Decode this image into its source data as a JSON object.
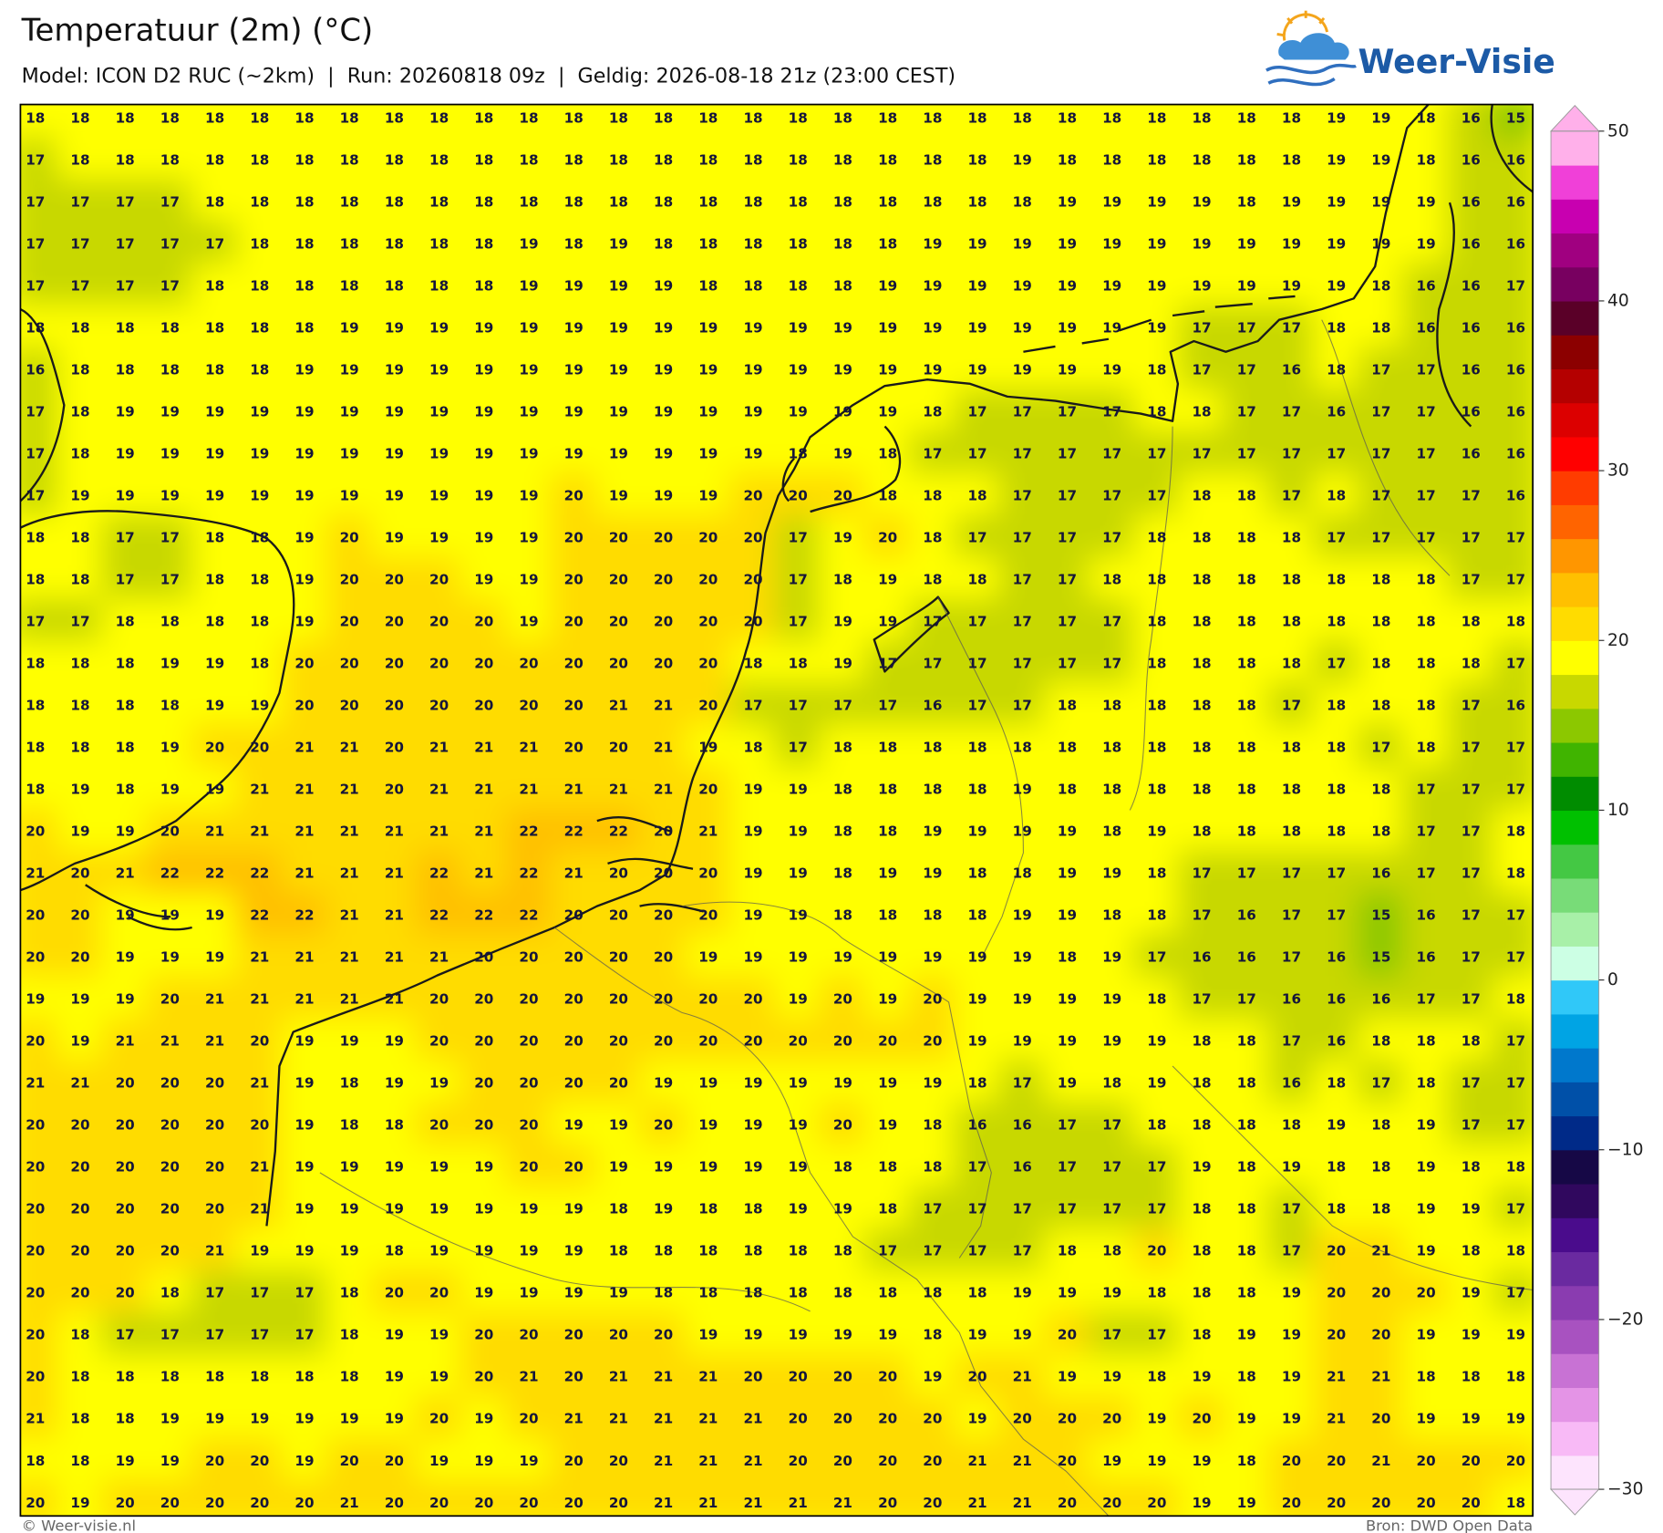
{
  "header": {
    "title": "Temperatuur (2m) (°C)",
    "subtitle": "Model: ICON D2 RUC (~2km)  |  Run: 20260818 09z  |  Geldig: 2026-08-18 21z (23:00 CEST)"
  },
  "logo": {
    "text": "Weer-Visie"
  },
  "map": {
    "values": [
      [
        18,
        18,
        18,
        18,
        18,
        18,
        18,
        18,
        18,
        18,
        18,
        18,
        18,
        18,
        18,
        18,
        18,
        18,
        18,
        18,
        18,
        18,
        18,
        18,
        18,
        18,
        18,
        18,
        18,
        19,
        19,
        18,
        16,
        15
      ],
      [
        17,
        18,
        18,
        18,
        18,
        18,
        18,
        18,
        18,
        18,
        18,
        18,
        18,
        18,
        18,
        18,
        18,
        18,
        18,
        18,
        18,
        18,
        19,
        18,
        18,
        18,
        18,
        18,
        18,
        19,
        19,
        18,
        16,
        16
      ],
      [
        17,
        17,
        17,
        17,
        18,
        18,
        18,
        18,
        18,
        18,
        18,
        18,
        18,
        18,
        18,
        18,
        18,
        18,
        18,
        18,
        18,
        18,
        18,
        19,
        19,
        19,
        19,
        18,
        19,
        19,
        19,
        19,
        16,
        16
      ],
      [
        17,
        17,
        17,
        17,
        17,
        18,
        18,
        18,
        18,
        18,
        18,
        19,
        18,
        19,
        18,
        18,
        18,
        18,
        18,
        18,
        19,
        19,
        19,
        19,
        19,
        19,
        19,
        19,
        19,
        19,
        19,
        19,
        16,
        16
      ],
      [
        17,
        17,
        17,
        17,
        18,
        18,
        18,
        18,
        18,
        18,
        18,
        19,
        19,
        19,
        19,
        18,
        18,
        18,
        18,
        19,
        19,
        19,
        19,
        19,
        19,
        19,
        19,
        19,
        19,
        19,
        18,
        16,
        16,
        17
      ],
      [
        18,
        18,
        18,
        18,
        18,
        18,
        18,
        19,
        19,
        19,
        19,
        19,
        19,
        19,
        19,
        19,
        19,
        19,
        19,
        19,
        19,
        19,
        19,
        19,
        19,
        19,
        17,
        17,
        17,
        18,
        18,
        16,
        16,
        16
      ],
      [
        16,
        18,
        18,
        18,
        18,
        18,
        19,
        19,
        19,
        19,
        19,
        19,
        19,
        19,
        19,
        19,
        19,
        19,
        19,
        19,
        19,
        19,
        19,
        19,
        19,
        18,
        17,
        17,
        16,
        18,
        17,
        17,
        16,
        16
      ],
      [
        17,
        18,
        19,
        19,
        19,
        19,
        19,
        19,
        19,
        19,
        19,
        19,
        19,
        19,
        19,
        19,
        19,
        19,
        19,
        19,
        18,
        17,
        17,
        17,
        17,
        18,
        18,
        17,
        17,
        16,
        17,
        17,
        16,
        16
      ],
      [
        17,
        18,
        19,
        19,
        19,
        19,
        19,
        19,
        19,
        19,
        19,
        19,
        19,
        19,
        19,
        19,
        19,
        18,
        19,
        18,
        17,
        17,
        17,
        17,
        17,
        17,
        17,
        17,
        17,
        17,
        17,
        17,
        16,
        16
      ],
      [
        17,
        19,
        19,
        19,
        19,
        19,
        19,
        19,
        19,
        19,
        19,
        19,
        20,
        19,
        19,
        19,
        20,
        20,
        20,
        18,
        18,
        18,
        17,
        17,
        17,
        17,
        18,
        18,
        17,
        18,
        17,
        17,
        17,
        16
      ],
      [
        18,
        18,
        17,
        17,
        18,
        18,
        19,
        20,
        19,
        19,
        19,
        19,
        20,
        20,
        20,
        20,
        20,
        17,
        19,
        20,
        18,
        17,
        17,
        17,
        17,
        18,
        18,
        18,
        18,
        17,
        17,
        17,
        17,
        17
      ],
      [
        18,
        18,
        17,
        17,
        18,
        18,
        19,
        20,
        20,
        20,
        19,
        19,
        20,
        20,
        20,
        20,
        20,
        17,
        18,
        19,
        18,
        18,
        17,
        17,
        18,
        18,
        18,
        18,
        18,
        18,
        18,
        18,
        17,
        17
      ],
      [
        17,
        17,
        18,
        18,
        18,
        18,
        19,
        20,
        20,
        20,
        20,
        19,
        20,
        20,
        20,
        20,
        20,
        17,
        19,
        19,
        17,
        17,
        17,
        17,
        17,
        18,
        18,
        18,
        18,
        18,
        18,
        18,
        18,
        18
      ],
      [
        18,
        18,
        18,
        19,
        19,
        18,
        20,
        20,
        20,
        20,
        20,
        20,
        20,
        20,
        20,
        20,
        18,
        18,
        19,
        17,
        17,
        17,
        17,
        17,
        17,
        18,
        18,
        18,
        18,
        17,
        18,
        18,
        18,
        17
      ],
      [
        18,
        18,
        18,
        18,
        19,
        19,
        20,
        20,
        20,
        20,
        20,
        20,
        20,
        21,
        21,
        20,
        17,
        17,
        17,
        17,
        16,
        17,
        17,
        18,
        18,
        18,
        18,
        18,
        17,
        18,
        18,
        18,
        17,
        16
      ],
      [
        18,
        18,
        18,
        19,
        20,
        20,
        21,
        21,
        20,
        21,
        21,
        21,
        20,
        20,
        21,
        19,
        18,
        17,
        18,
        18,
        18,
        18,
        18,
        18,
        18,
        18,
        18,
        18,
        18,
        18,
        17,
        18,
        17,
        17
      ],
      [
        18,
        19,
        18,
        19,
        19,
        21,
        21,
        21,
        20,
        21,
        21,
        21,
        21,
        21,
        21,
        20,
        19,
        19,
        18,
        18,
        18,
        18,
        19,
        18,
        18,
        18,
        18,
        18,
        18,
        18,
        18,
        17,
        17,
        17
      ],
      [
        20,
        19,
        19,
        20,
        21,
        21,
        21,
        21,
        21,
        21,
        21,
        22,
        22,
        22,
        20,
        21,
        19,
        19,
        18,
        18,
        19,
        19,
        19,
        19,
        18,
        19,
        18,
        18,
        18,
        18,
        18,
        17,
        17,
        18
      ],
      [
        21,
        20,
        21,
        22,
        22,
        22,
        21,
        21,
        21,
        22,
        21,
        22,
        21,
        20,
        20,
        20,
        19,
        19,
        18,
        19,
        19,
        18,
        18,
        19,
        19,
        18,
        17,
        17,
        17,
        17,
        16,
        17,
        17,
        18
      ],
      [
        20,
        20,
        19,
        19,
        19,
        22,
        22,
        21,
        21,
        22,
        22,
        22,
        20,
        20,
        20,
        20,
        19,
        19,
        18,
        18,
        18,
        18,
        19,
        19,
        18,
        18,
        17,
        16,
        17,
        17,
        15,
        16,
        17,
        17
      ],
      [
        20,
        20,
        19,
        19,
        19,
        21,
        21,
        21,
        21,
        21,
        20,
        20,
        20,
        20,
        20,
        19,
        19,
        19,
        19,
        19,
        19,
        19,
        19,
        18,
        19,
        17,
        16,
        16,
        17,
        16,
        15,
        16,
        17,
        17
      ],
      [
        19,
        19,
        19,
        20,
        21,
        21,
        21,
        21,
        21,
        20,
        20,
        20,
        20,
        20,
        20,
        20,
        20,
        19,
        20,
        19,
        20,
        19,
        19,
        19,
        19,
        18,
        17,
        17,
        16,
        16,
        16,
        17,
        17,
        18
      ],
      [
        20,
        19,
        21,
        21,
        21,
        20,
        19,
        19,
        19,
        20,
        20,
        20,
        20,
        20,
        20,
        20,
        20,
        20,
        20,
        20,
        20,
        19,
        19,
        19,
        19,
        19,
        18,
        18,
        17,
        16,
        18,
        18,
        18,
        17
      ],
      [
        21,
        21,
        20,
        20,
        20,
        21,
        19,
        18,
        19,
        19,
        20,
        20,
        20,
        20,
        19,
        19,
        19,
        19,
        19,
        19,
        19,
        18,
        17,
        19,
        18,
        19,
        18,
        18,
        16,
        18,
        17,
        18,
        17,
        17
      ],
      [
        20,
        20,
        20,
        20,
        20,
        20,
        19,
        18,
        18,
        20,
        20,
        20,
        19,
        19,
        20,
        19,
        19,
        19,
        20,
        19,
        18,
        16,
        16,
        17,
        17,
        18,
        18,
        18,
        18,
        19,
        18,
        19,
        17,
        17
      ],
      [
        20,
        20,
        20,
        20,
        20,
        21,
        19,
        19,
        19,
        19,
        19,
        20,
        20,
        19,
        19,
        19,
        19,
        19,
        18,
        18,
        18,
        17,
        16,
        17,
        17,
        17,
        19,
        18,
        19,
        18,
        18,
        19,
        18,
        18
      ],
      [
        20,
        20,
        20,
        20,
        20,
        21,
        19,
        19,
        19,
        19,
        19,
        19,
        19,
        18,
        19,
        18,
        18,
        19,
        19,
        18,
        17,
        17,
        17,
        17,
        17,
        17,
        18,
        18,
        17,
        18,
        18,
        19,
        19,
        17
      ],
      [
        20,
        20,
        20,
        20,
        21,
        19,
        19,
        19,
        18,
        19,
        19,
        19,
        19,
        18,
        18,
        18,
        18,
        18,
        18,
        17,
        17,
        17,
        17,
        18,
        18,
        20,
        18,
        18,
        17,
        20,
        21,
        19,
        18,
        18
      ],
      [
        20,
        20,
        20,
        18,
        17,
        17,
        17,
        18,
        20,
        20,
        19,
        19,
        19,
        19,
        18,
        18,
        18,
        18,
        18,
        18,
        18,
        18,
        19,
        19,
        19,
        18,
        18,
        18,
        19,
        20,
        20,
        20,
        19,
        17
      ],
      [
        20,
        18,
        17,
        17,
        17,
        17,
        17,
        18,
        19,
        19,
        20,
        20,
        20,
        20,
        20,
        19,
        19,
        19,
        19,
        19,
        18,
        19,
        19,
        20,
        17,
        17,
        18,
        19,
        19,
        20,
        20,
        19,
        19,
        19
      ],
      [
        20,
        18,
        18,
        18,
        18,
        18,
        18,
        18,
        19,
        19,
        20,
        21,
        20,
        21,
        21,
        21,
        20,
        20,
        20,
        20,
        19,
        20,
        21,
        19,
        19,
        18,
        19,
        18,
        19,
        21,
        21,
        18,
        18,
        18
      ],
      [
        21,
        18,
        18,
        19,
        19,
        19,
        19,
        19,
        19,
        20,
        19,
        20,
        21,
        21,
        21,
        21,
        21,
        20,
        20,
        20,
        20,
        19,
        20,
        20,
        20,
        19,
        20,
        19,
        19,
        21,
        20,
        19,
        19,
        19
      ],
      [
        18,
        18,
        19,
        19,
        20,
        20,
        19,
        20,
        20,
        19,
        19,
        19,
        20,
        20,
        21,
        21,
        21,
        20,
        20,
        20,
        20,
        21,
        21,
        20,
        19,
        19,
        19,
        18,
        20,
        20,
        21,
        20,
        20,
        20
      ],
      [
        20,
        19,
        20,
        20,
        20,
        20,
        20,
        21,
        20,
        20,
        20,
        20,
        20,
        20,
        21,
        21,
        21,
        21,
        21,
        20,
        20,
        21,
        21,
        20,
        20,
        20,
        19,
        19,
        20,
        20,
        20,
        20,
        20,
        18
      ]
    ]
  },
  "colorbar": {
    "lim": [
      -30,
      50
    ],
    "ticks": [
      50,
      40,
      30,
      20,
      10,
      0,
      {
        "value": -10,
        "label": "−10"
      },
      {
        "value": -20,
        "label": "−20"
      },
      {
        "value": -30,
        "label": "−30"
      }
    ],
    "colors": [
      "#fde4fd",
      "#f8baf6",
      "#e494e6",
      "#c872d4",
      "#a852c0",
      "#8a3cb0",
      "#6a2aa0",
      "#4a0c8c",
      "#30085e",
      "#160846",
      "#002a88",
      "#0050a8",
      "#0078cc",
      "#00a4e4",
      "#30c8f8",
      "#ccffe4",
      "#a8f0a8",
      "#78dc78",
      "#44c844",
      "#00c000",
      "#008c00",
      "#40b400",
      "#8cc800",
      "#c8d800",
      "#ffff00",
      "#ffdc00",
      "#ffc000",
      "#ff9600",
      "#ff6400",
      "#ff3c00",
      "#ff0000",
      "#dc0000",
      "#b40000",
      "#8c0000",
      "#5a0028",
      "#780060",
      "#a00080",
      "#c800b0",
      "#f040d8",
      "#ffb0ea"
    ]
  },
  "footer": {
    "credit": "© Weer-visie.nl",
    "source": "Bron: DWD Open Data"
  }
}
